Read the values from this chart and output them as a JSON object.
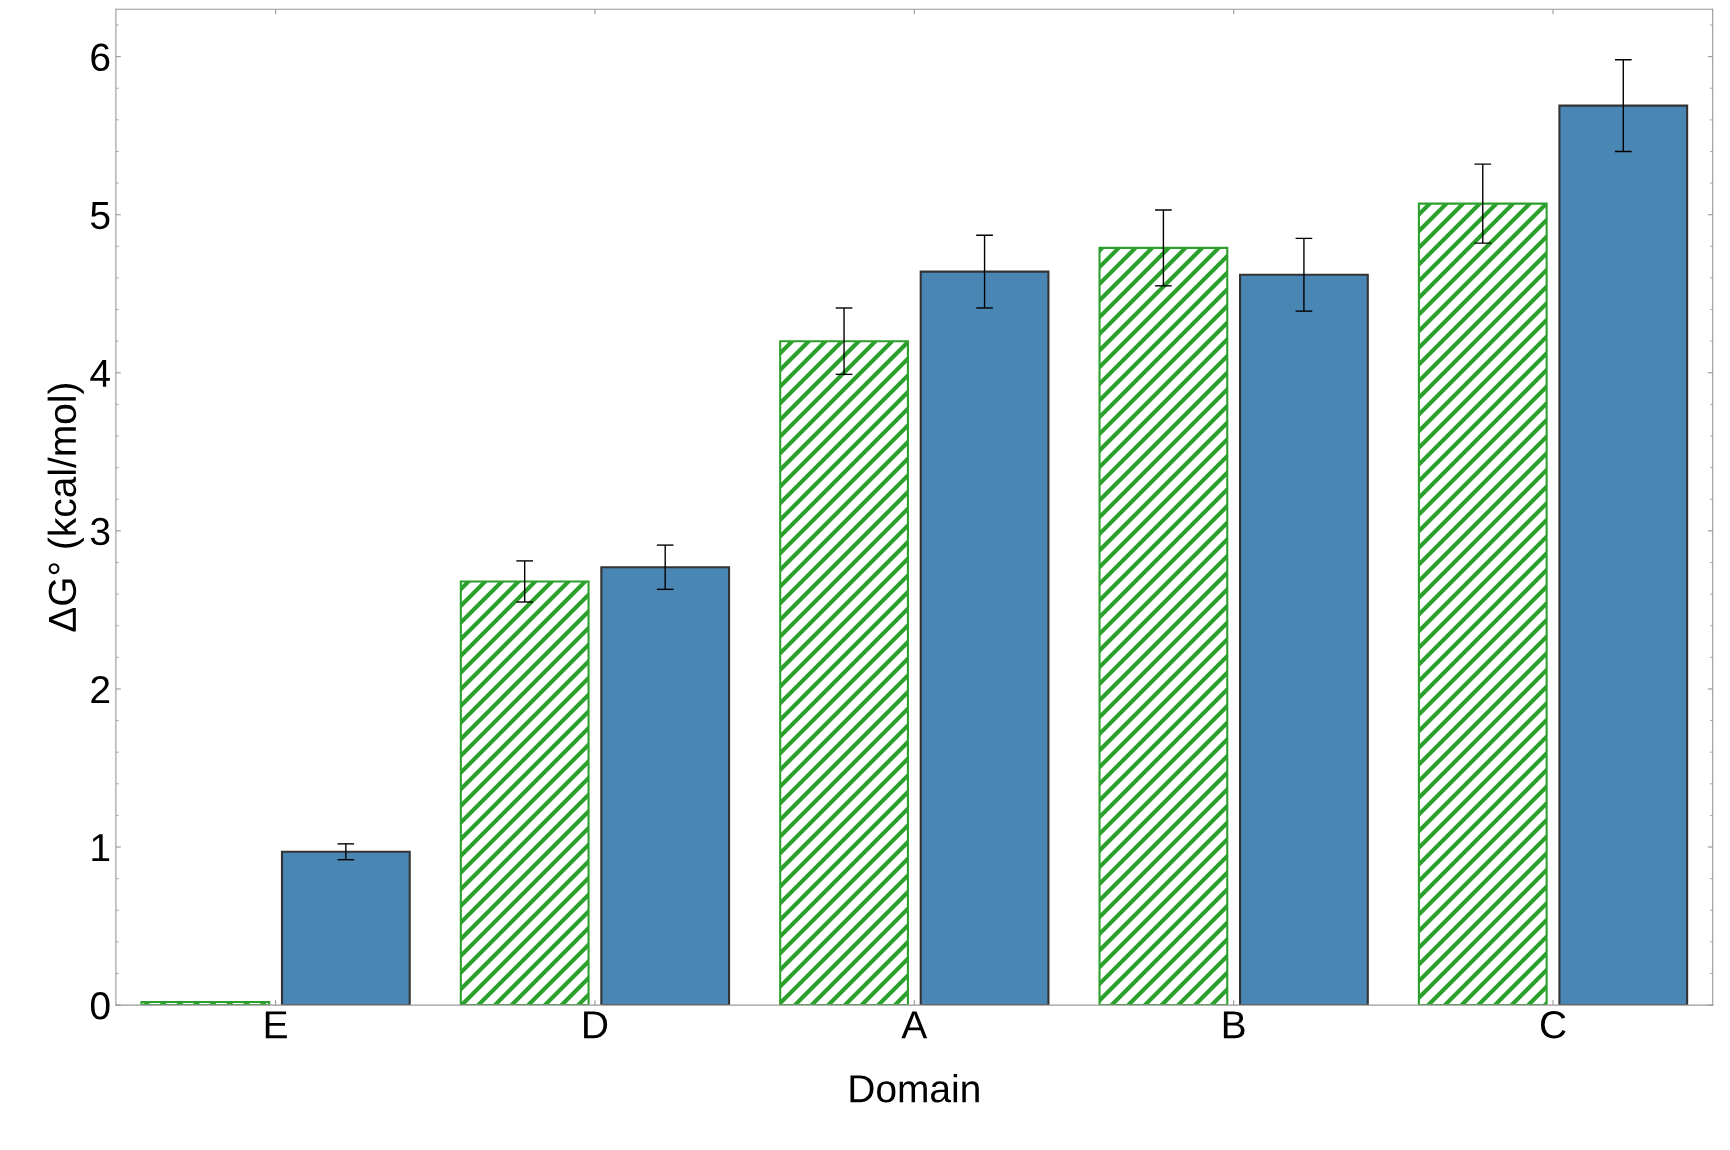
{
  "chart_data": {
    "type": "bar",
    "xlabel": "Domain",
    "ylabel": "ΔG° (kcal/mol)",
    "categories": [
      "E",
      "D",
      "A",
      "B",
      "C"
    ],
    "series": [
      {
        "color": "#2ca02c",
        "values": [
          0.02,
          2.68,
          4.2,
          4.79,
          5.07
        ],
        "errors": [
          null,
          0.13,
          0.21,
          0.24,
          0.25
        ]
      },
      {
        "color": "#4a86b4",
        "values": [
          0.97,
          2.77,
          4.64,
          4.62,
          5.69
        ],
        "errors": [
          0.05,
          0.14,
          0.23,
          0.23,
          0.29
        ]
      }
    ],
    "ylim": [
      0,
      6.3
    ],
    "yticks": [
      0,
      1,
      2,
      3,
      4,
      5,
      6
    ],
    "grid": false,
    "legend": false
  }
}
